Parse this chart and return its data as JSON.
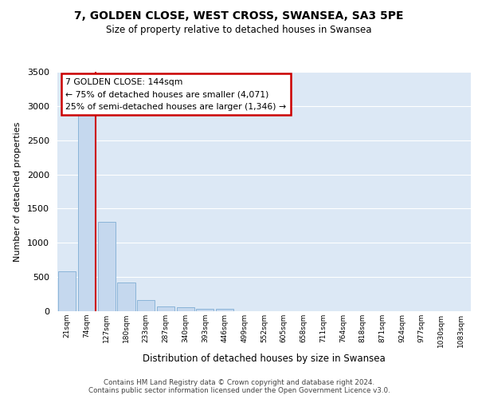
{
  "title1": "7, GOLDEN CLOSE, WEST CROSS, SWANSEA, SA3 5PE",
  "title2": "Size of property relative to detached houses in Swansea",
  "xlabel": "Distribution of detached houses by size in Swansea",
  "ylabel": "Number of detached properties",
  "categories": [
    "21sqm",
    "74sqm",
    "127sqm",
    "180sqm",
    "233sqm",
    "287sqm",
    "340sqm",
    "393sqm",
    "446sqm",
    "499sqm",
    "552sqm",
    "605sqm",
    "658sqm",
    "711sqm",
    "764sqm",
    "818sqm",
    "871sqm",
    "924sqm",
    "977sqm",
    "1030sqm",
    "1083sqm"
  ],
  "bar_heights": [
    580,
    2900,
    1310,
    420,
    160,
    70,
    55,
    40,
    35,
    0,
    0,
    0,
    0,
    0,
    0,
    0,
    0,
    0,
    0,
    0,
    0
  ],
  "bar_color": "#c5d8ee",
  "bar_edge_color": "#8ab4d8",
  "red_line_index": 1,
  "annotation_line1": "7 GOLDEN CLOSE: 144sqm",
  "annotation_line2": "← 75% of detached houses are smaller (4,071)",
  "annotation_line3": "25% of semi-detached houses are larger (1,346) →",
  "annotation_box_facecolor": "#ffffff",
  "annotation_box_edgecolor": "#cc0000",
  "red_line_color": "#cc0000",
  "plot_bg_color": "#dce8f5",
  "footer_text": "Contains HM Land Registry data © Crown copyright and database right 2024.\nContains public sector information licensed under the Open Government Licence v3.0.",
  "ylim": [
    0,
    3500
  ],
  "yticks": [
    0,
    500,
    1000,
    1500,
    2000,
    2500,
    3000,
    3500
  ]
}
